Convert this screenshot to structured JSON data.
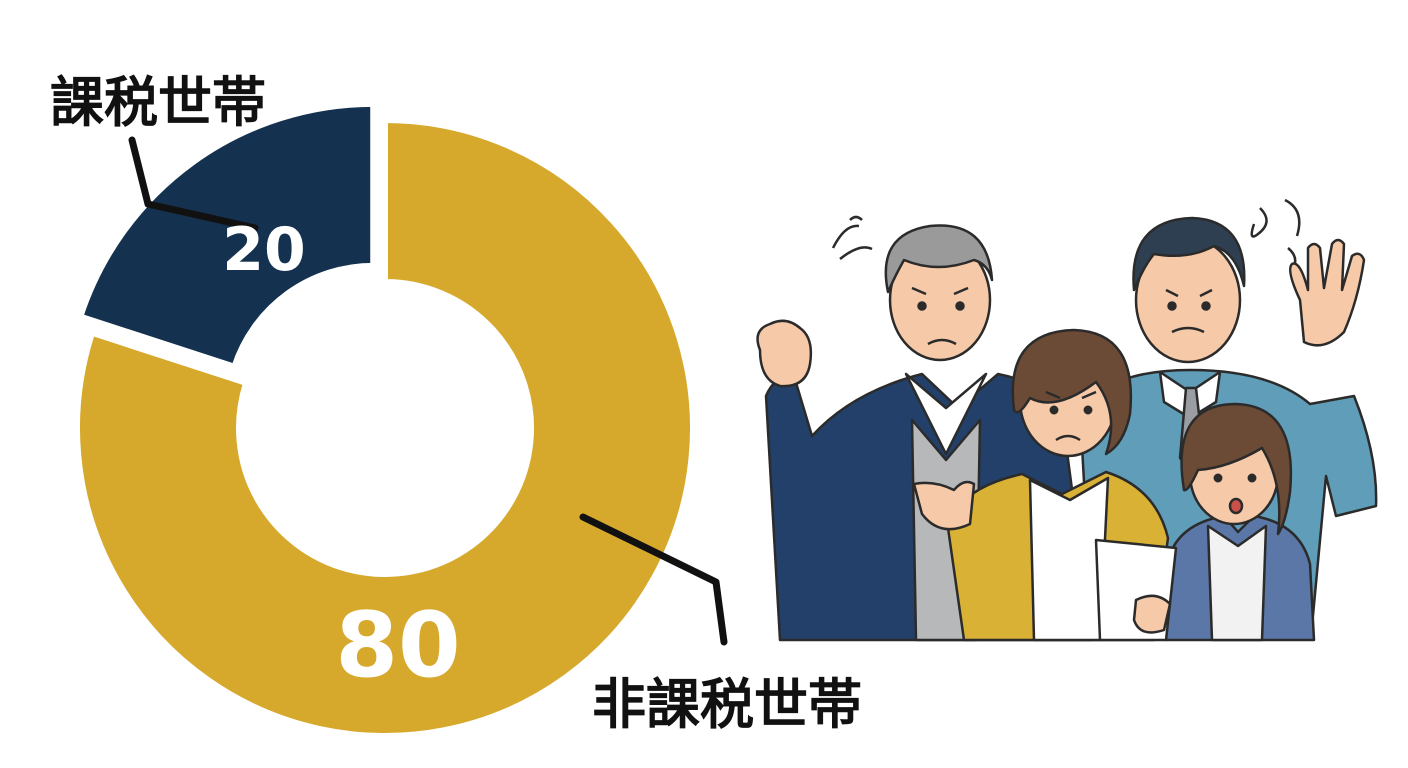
{
  "chart_data": {
    "type": "pie",
    "subtype": "donut",
    "categories": [
      "課税世帯",
      "非課税世帯"
    ],
    "values": [
      20,
      80
    ],
    "colors": [
      "#14324f",
      "#d6a82c"
    ],
    "data_labels": [
      "20",
      "80"
    ],
    "title": "",
    "legend": "none"
  },
  "illustration": {
    "icon": "worried-family-icon",
    "colors": {
      "navy_suit": "#23406a",
      "teal_suit": "#5f9db8",
      "mustard_cardigan": "#d8b135",
      "periwinkle_jacket": "#5a77a8",
      "skin": "#f6c9a8",
      "outline": "#2b2b2b"
    }
  }
}
